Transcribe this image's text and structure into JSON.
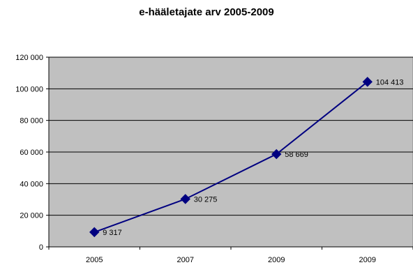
{
  "chart_data": {
    "type": "line",
    "title": "e-hääletajate arv 2005-2009",
    "xlabel": "",
    "ylabel": "",
    "categories": [
      "2005",
      "2007",
      "2009",
      "2009"
    ],
    "series": [
      {
        "values": [
          9317,
          30275,
          58669,
          104413
        ],
        "data_labels": [
          "9 317",
          "30 275",
          "58 669",
          "104 413"
        ]
      }
    ],
    "ylim": [
      0,
      120000
    ],
    "yticks": [
      0,
      20000,
      40000,
      60000,
      80000,
      100000,
      120000
    ],
    "ytick_labels": [
      "0",
      "20 000",
      "40 000",
      "60 000",
      "80 000",
      "100 000",
      "120 000"
    ],
    "grid": true,
    "legend": "none",
    "colors": {
      "plot_background": "#c0c0c0",
      "line": "#000080",
      "marker": "#000080",
      "gridline": "#000000"
    }
  }
}
